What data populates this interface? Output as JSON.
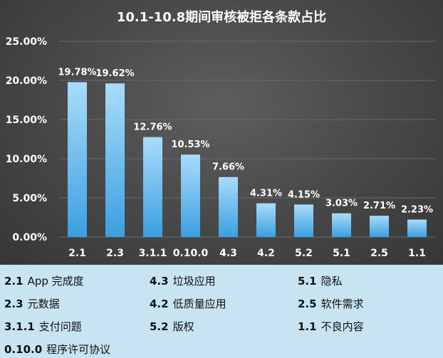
{
  "chart_data": {
    "type": "bar",
    "title": "10.1-10.8期间审核被拒各条款占比",
    "categories": [
      "2.1",
      "2.3",
      "3.1.1",
      "0.10.0",
      "4.3",
      "4.2",
      "5.2",
      "5.1",
      "2.5",
      "1.1"
    ],
    "values": [
      19.78,
      19.62,
      12.76,
      10.53,
      7.66,
      4.31,
      4.15,
      3.03,
      2.71,
      2.23
    ],
    "value_labels": [
      "19.78%",
      "19.62%",
      "12.76%",
      "10.53%",
      "7.66%",
      "4.31%",
      "4.15%",
      "3.03%",
      "2.71%",
      "2.23%"
    ],
    "ylim": [
      0,
      25
    ],
    "yticks": [
      "0.00%",
      "5.00%",
      "10.00%",
      "15.00%",
      "20.00%",
      "25.00%"
    ],
    "grid": true,
    "colors": {
      "bar_top": "#a9dcfa",
      "bar_bottom": "#3b9fe0",
      "gridline": "#6a6a6a",
      "text": "#ffffff"
    }
  },
  "legend": [
    {
      "code": "2.1",
      "label": "App 完成度"
    },
    {
      "code": "2.3",
      "label": "元数据"
    },
    {
      "code": "3.1.1",
      "label": "支付问题"
    },
    {
      "code": "0.10.0",
      "label": "程序许可协议"
    },
    {
      "code": "4.3",
      "label": "垃圾应用"
    },
    {
      "code": "4.2",
      "label": "低质量应用"
    },
    {
      "code": "5.2",
      "label": "版权"
    },
    {
      "code": "5.1",
      "label": "隐私"
    },
    {
      "code": "2.5",
      "label": "软件需求"
    },
    {
      "code": "1.1",
      "label": "不良内容"
    }
  ]
}
